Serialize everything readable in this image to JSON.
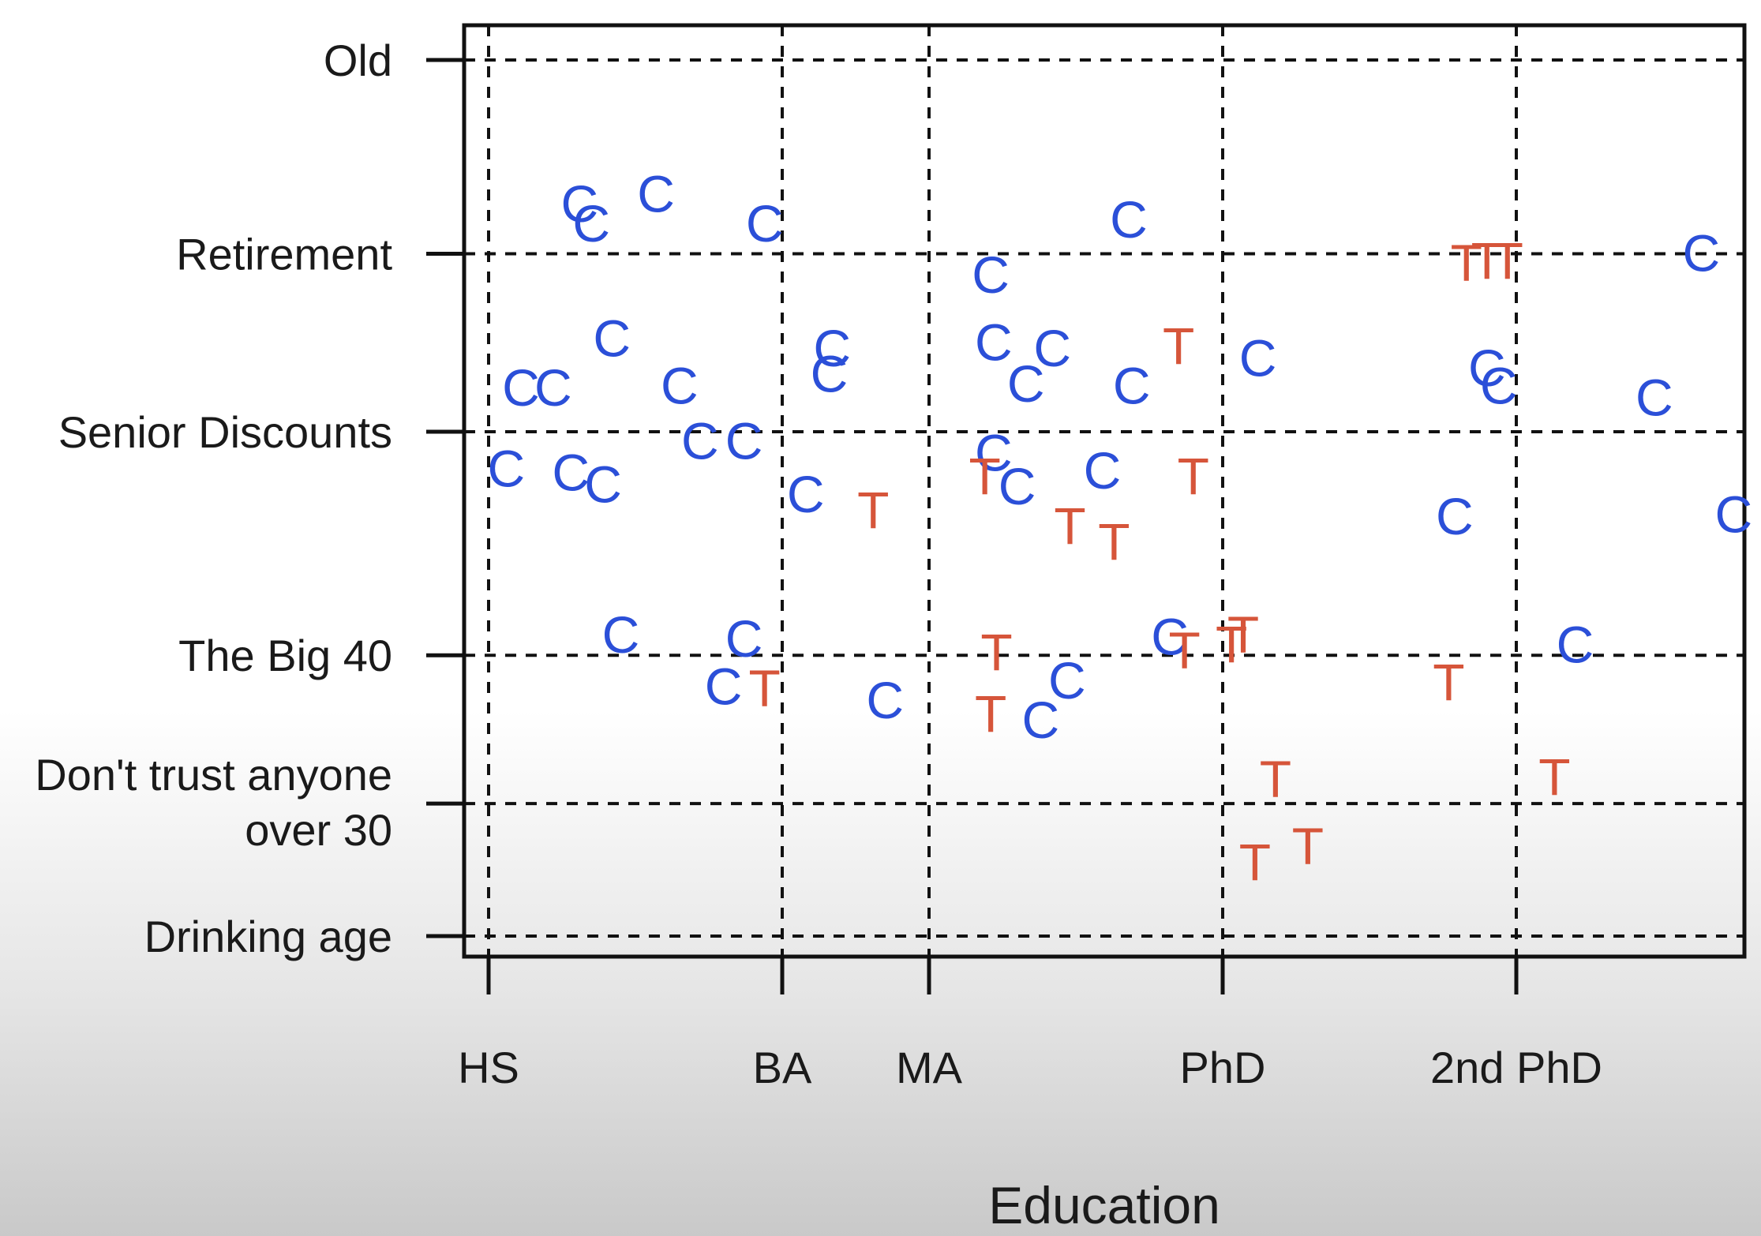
{
  "chart_data": {
    "type": "scatter",
    "title": "",
    "xlabel": "Education",
    "ylabel": "",
    "xlim": [
      -0.08,
      4.3
    ],
    "ylim": [
      -0.1,
      4.6
    ],
    "grid": true,
    "x_ticks": [
      {
        "value": 0,
        "label": "HS"
      },
      {
        "value": 1,
        "label": "BA"
      },
      {
        "value": 1.5,
        "label": "MA"
      },
      {
        "value": 2.5,
        "label": "PhD"
      },
      {
        "value": 3.5,
        "label": "2nd PhD"
      }
    ],
    "y_ticks": [
      {
        "value": 0,
        "label": "Drinking age"
      },
      {
        "value": 0.67,
        "label": "Don't trust anyone over 30"
      },
      {
        "value": 1.42,
        "label": "The Big 40"
      },
      {
        "value": 2.55,
        "label": "Senior Discounts"
      },
      {
        "value": 3.45,
        "label": "Retirement"
      },
      {
        "value": 4.43,
        "label": "Old"
      }
    ],
    "series": [
      {
        "marker": "C",
        "color": "#2b4fd8",
        "points": [
          [
            0.31,
            3.7
          ],
          [
            0.57,
            3.75
          ],
          [
            0.35,
            3.6
          ],
          [
            0.94,
            3.6
          ],
          [
            2.18,
            3.62
          ],
          [
            0.42,
            3.02
          ],
          [
            1.17,
            2.97
          ],
          [
            1.16,
            2.84
          ],
          [
            1.71,
            3.34
          ],
          [
            1.72,
            3.0
          ],
          [
            1.92,
            2.97
          ],
          [
            1.83,
            2.79
          ],
          [
            2.19,
            2.78
          ],
          [
            2.62,
            2.92
          ],
          [
            3.4,
            2.87
          ],
          [
            3.44,
            2.78
          ],
          [
            3.97,
            2.72
          ],
          [
            4.13,
            3.45
          ],
          [
            0.11,
            2.77
          ],
          [
            0.22,
            2.77
          ],
          [
            0.65,
            2.78
          ],
          [
            0.72,
            2.5
          ],
          [
            0.87,
            2.5
          ],
          [
            1.72,
            2.44
          ],
          [
            1.8,
            2.27
          ],
          [
            2.09,
            2.35
          ],
          [
            0.06,
            2.36
          ],
          [
            0.28,
            2.34
          ],
          [
            0.39,
            2.28
          ],
          [
            1.08,
            2.23
          ],
          [
            3.29,
            2.12
          ],
          [
            4.24,
            2.13
          ],
          [
            0.45,
            1.52
          ],
          [
            0.87,
            1.5
          ],
          [
            2.32,
            1.51
          ],
          [
            3.7,
            1.47
          ],
          [
            0.8,
            1.26
          ],
          [
            1.35,
            1.19
          ],
          [
            1.97,
            1.29
          ],
          [
            1.88,
            1.09
          ]
        ]
      },
      {
        "marker": "T",
        "color": "#d6553a",
        "points": [
          [
            3.33,
            3.4
          ],
          [
            3.4,
            3.41
          ],
          [
            3.47,
            3.41
          ],
          [
            2.35,
            2.98
          ],
          [
            1.69,
            2.32
          ],
          [
            2.4,
            2.32
          ],
          [
            1.31,
            2.15
          ],
          [
            1.98,
            2.07
          ],
          [
            2.13,
            1.99
          ],
          [
            1.73,
            1.43
          ],
          [
            2.37,
            1.44
          ],
          [
            2.53,
            1.47
          ],
          [
            2.57,
            1.52
          ],
          [
            3.27,
            1.28
          ],
          [
            0.94,
            1.25
          ],
          [
            1.71,
            1.12
          ],
          [
            2.68,
            0.79
          ],
          [
            3.63,
            0.8
          ],
          [
            2.61,
            0.37
          ],
          [
            2.79,
            0.45
          ]
        ]
      }
    ]
  }
}
